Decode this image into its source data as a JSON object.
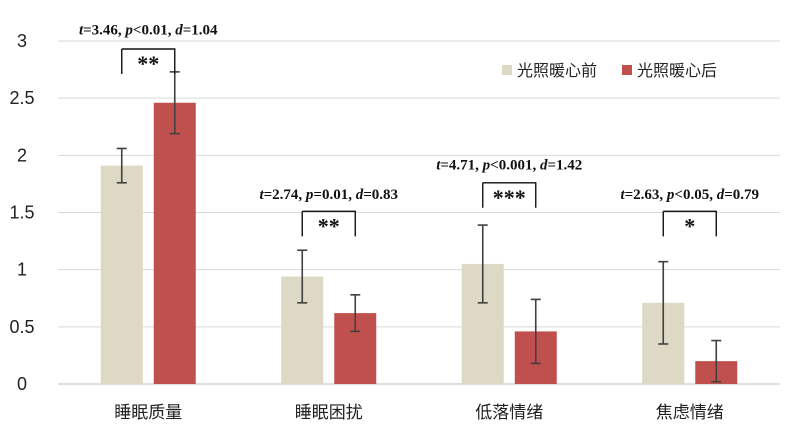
{
  "chart_data": {
    "type": "bar",
    "categories": [
      "睡眠质量",
      "睡眠困扰",
      "低落情绪",
      "焦虑情绪"
    ],
    "series": [
      {
        "name": "光照暖心前",
        "color": "#ddd9c4",
        "values": [
          1.91,
          0.94,
          1.05,
          0.71
        ],
        "error": [
          0.15,
          0.23,
          0.34,
          0.36
        ]
      },
      {
        "name": "光照暖心后",
        "color": "#c0504d",
        "values": [
          2.46,
          0.62,
          0.46,
          0.2
        ],
        "error": [
          0.27,
          0.16,
          0.28,
          0.18
        ]
      }
    ],
    "ylim": [
      0,
      3
    ],
    "yticks": [
      "0",
      "0.5",
      "1",
      "1.5",
      "2",
      "2.5",
      "3"
    ],
    "ytick_values": [
      0,
      0.5,
      1,
      1.5,
      2,
      2.5,
      3
    ],
    "grid": true,
    "legend_position": "top-right",
    "annotations": [
      {
        "t": "3.46",
        "p_op": "<",
        "p": "0.01",
        "d": "1.04",
        "sig": "**",
        "bracket_top": 2.93,
        "text_y": 3.1
      },
      {
        "t": "2.74",
        "p_op": "=",
        "p": "0.01",
        "d": "0.83",
        "sig": "**",
        "bracket_top": 1.51,
        "text_y": 1.66
      },
      {
        "t": "4.71",
        "p_op": "<",
        "p": "0.001",
        "d": "1.42",
        "sig": "***",
        "bracket_top": 1.76,
        "text_y": 1.92
      },
      {
        "t": "2.63",
        "p_op": "<",
        "p": "0.05",
        "d": "0.79",
        "sig": "*",
        "bracket_top": 1.51,
        "text_y": 1.66
      }
    ]
  }
}
